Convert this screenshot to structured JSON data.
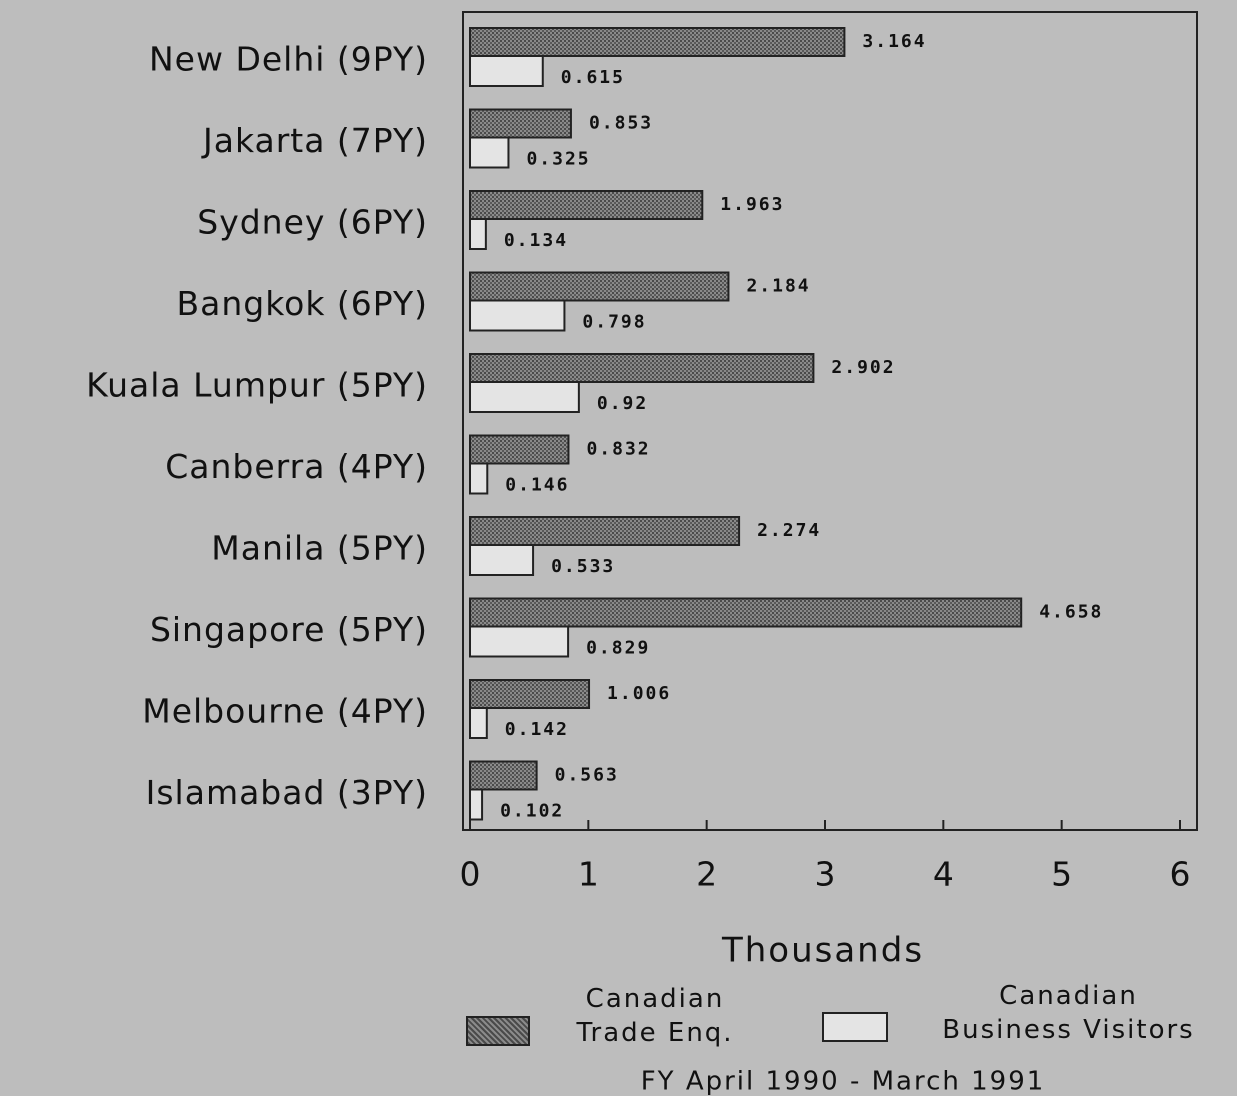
{
  "chart_data": {
    "type": "hbar",
    "categories": [
      "New Delhi (9PY)",
      "Jakarta (7PY)",
      "Sydney (6PY)",
      "Bangkok (6PY)",
      "Kuala Lumpur (5PY)",
      "Canberra (4PY)",
      "Manila (5PY)",
      "Singapore (5PY)",
      "Melbourne (4PY)",
      "Islamabad (3PY)"
    ],
    "series": [
      {
        "name": "Canadian\nTrade Enq.",
        "color": "#6e6e6e",
        "values": [
          3.164,
          0.853,
          1.963,
          2.184,
          2.902,
          0.832,
          2.274,
          4.658,
          1.006,
          0.563
        ]
      },
      {
        "name": "Canadian\nBusiness Visitors",
        "color": "#e4e4e4",
        "values": [
          0.615,
          0.325,
          0.134,
          0.798,
          0.92,
          0.146,
          0.533,
          0.829,
          0.142,
          0.102
        ]
      }
    ],
    "xlabel": "Thousands",
    "note": "FY April 1990 - March 1991",
    "xlim": [
      0,
      6
    ],
    "xticks": [
      0,
      1,
      2,
      3,
      4,
      5,
      6
    ]
  }
}
